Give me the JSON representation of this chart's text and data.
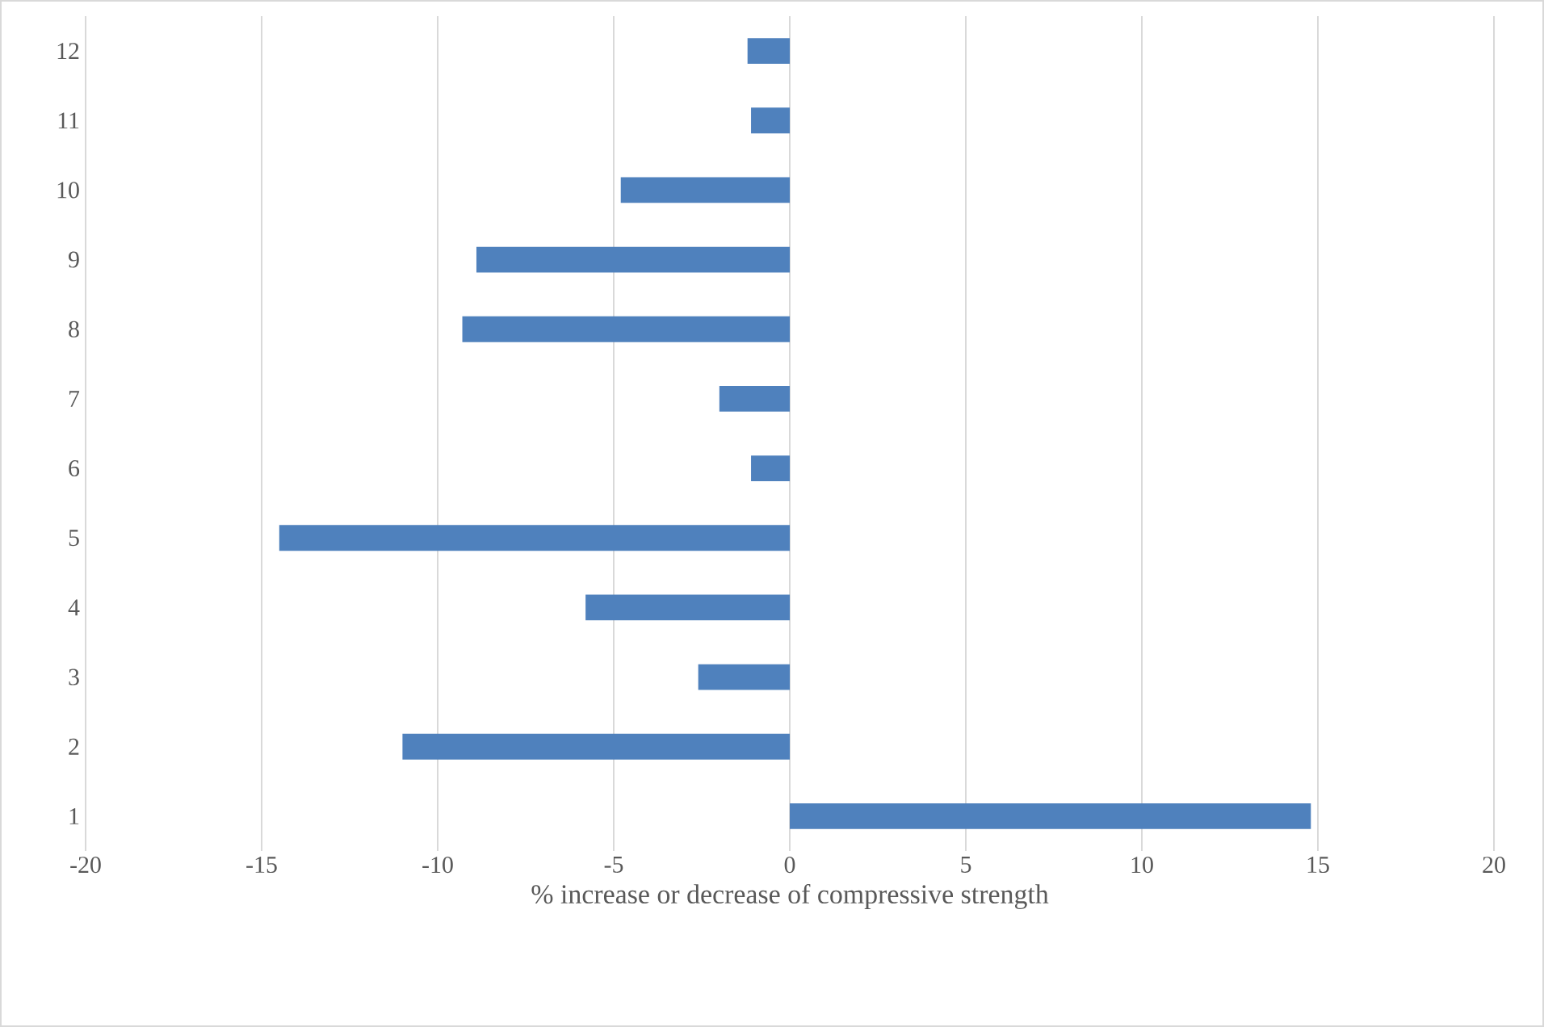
{
  "chart_data": {
    "type": "bar",
    "orientation": "horizontal",
    "xlabel": "% increase or decrease of compressive strength",
    "categories": [
      "12",
      "11",
      "10",
      "9",
      "8",
      "7",
      "6",
      "5",
      "4",
      "3",
      "2",
      "1"
    ],
    "values": [
      -1.2,
      -1.1,
      -4.8,
      -8.9,
      -9.3,
      -2.0,
      -1.1,
      -14.5,
      -5.8,
      -2.6,
      -11.0,
      14.8
    ],
    "color": "#4f81bd",
    "xlim": [
      -20,
      20
    ],
    "xticks": [
      -20,
      -15,
      -10,
      -5,
      0,
      5,
      10,
      15,
      20
    ],
    "grid": "x"
  }
}
